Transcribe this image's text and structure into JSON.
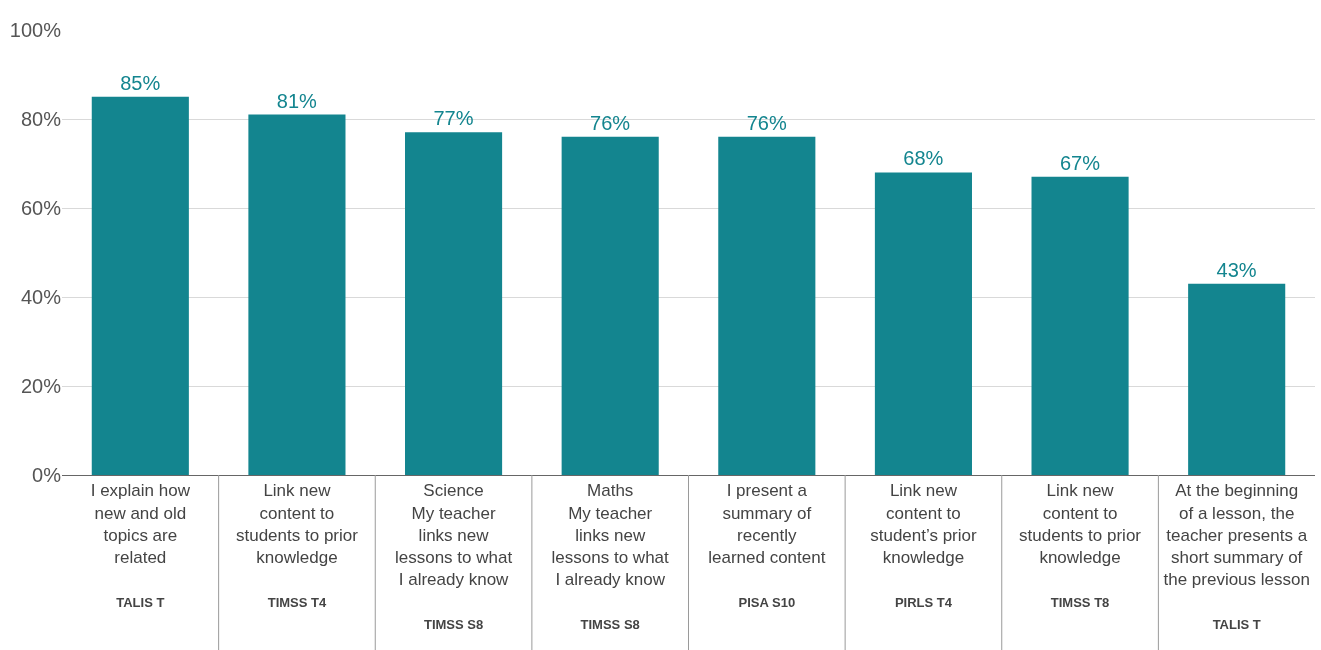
{
  "chart_data": {
    "type": "bar",
    "categories": [
      "I explain how\nnew and old\ntopics are\nrelated\n\nTALIS T",
      "Link new\ncontent to\nstudents to prior\nknowledge\n\nTIMSS T4",
      "Science\nMy teacher\nlinks new\nlessons to what\nI already know\n\nTIMSS S8",
      "Maths\nMy teacher\nlinks new\nlessons to what\nI already know\n\nTIMSS S8",
      "I present a\nsummary of\nrecently\nlearned content\n\nPISA S10",
      "Link new\ncontent to\nstudent’s prior\nknowledge\n\nPIRLS T4",
      "Link new\ncontent to\nstudents to prior\nknowledge\n\nTIMSS T8",
      "At the beginning\nof a lesson, the\nteacher presents a\nshort summary of\nthe previous lesson\n\nTALIS T"
    ],
    "values": [
      85,
      81,
      77,
      76,
      76,
      68,
      67,
      43
    ],
    "value_labels": [
      "85%",
      "81%",
      "77%",
      "76%",
      "76%",
      "68%",
      "67%",
      "43%"
    ],
    "color": "#13858f",
    "ylim": [
      0,
      100
    ],
    "yticks": [
      {
        "value": 0,
        "label": "0%"
      },
      {
        "value": 20,
        "label": "20%"
      },
      {
        "value": 40,
        "label": "40%"
      },
      {
        "value": 60,
        "label": "60%"
      },
      {
        "value": 80,
        "label": "80%"
      },
      {
        "value": 100,
        "label": "100%"
      }
    ],
    "grid": "y"
  }
}
